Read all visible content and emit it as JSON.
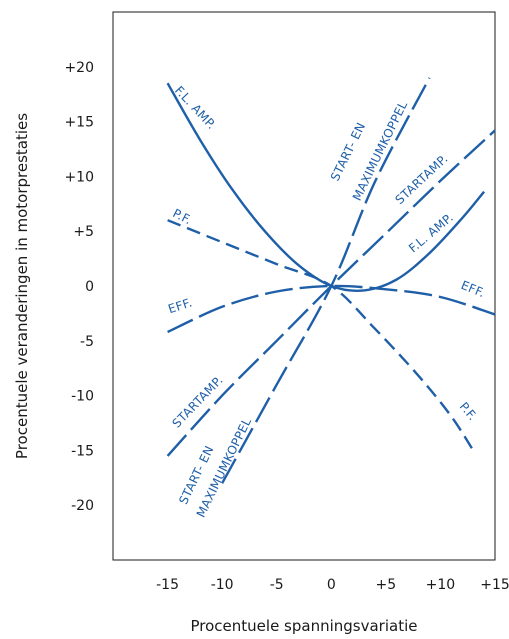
{
  "chart_data": {
    "type": "line",
    "title": "",
    "xlabel": "Procentuele spanningsvariatie",
    "ylabel": "Procentuele veranderingen in motorprestaties",
    "xlim": [
      -20,
      15
    ],
    "ylim": [
      -25,
      25
    ],
    "x_ticks": [
      -15,
      -10,
      -5,
      0,
      5,
      10,
      15
    ],
    "x_tick_labels": [
      "-15",
      "-10",
      "-5",
      "0",
      "+5",
      "+10",
      "+15"
    ],
    "y_ticks": [
      20,
      15,
      10,
      5,
      0,
      -5,
      -10,
      -15,
      -20
    ],
    "y_tick_labels": [
      "+20",
      "+15",
      "+10",
      "+5",
      "0",
      "-5",
      "-10",
      "-15",
      "-20"
    ],
    "grid": false,
    "series": [
      {
        "name": "F.L. AMP.",
        "style": "solid",
        "x": [
          -15,
          -12,
          -9,
          -6,
          -3,
          0,
          3,
          6,
          9,
          12,
          14
        ],
        "y": [
          18.5,
          13.3,
          8.7,
          4.9,
          1.9,
          0,
          -0.4,
          0.6,
          3.0,
          6.2,
          8.6
        ]
      },
      {
        "name": "START- EN MAXIMUMKOPPEL",
        "style": "long-dash",
        "x": [
          -10,
          -5,
          0,
          4,
          9
        ],
        "y": [
          -18,
          -9,
          0,
          9.5,
          19
        ]
      },
      {
        "name": "STARTAMP.",
        "style": "long-dash",
        "x": [
          -15,
          -10,
          -5,
          0,
          5,
          10,
          15
        ],
        "y": [
          -15.5,
          -10,
          -5,
          0,
          4.8,
          9.6,
          14.2
        ]
      },
      {
        "name": "P.F.",
        "style": "dash",
        "x": [
          -15,
          -10,
          -5,
          0,
          4,
          8,
          11,
          13
        ],
        "y": [
          6,
          4,
          2,
          0,
          -3.9,
          -8.2,
          -11.9,
          -15
        ]
      },
      {
        "name": "EFF.",
        "style": "long-dash",
        "x": [
          -15,
          -10,
          -5,
          0,
          5,
          10,
          15
        ],
        "y": [
          -4.2,
          -1.9,
          -0.5,
          0,
          -0.3,
          -1.0,
          -2.6
        ]
      }
    ],
    "annotations": [
      {
        "text": "F.L. AMP.",
        "x": -14.4,
        "y": 17.8,
        "angle": 47
      },
      {
        "text": "START- EN",
        "x": 0.6,
        "y": 9.5,
        "angle": -64
      },
      {
        "text": "MAXIMUMKOPPEL",
        "x": 2.6,
        "y": 7.7,
        "angle": -64
      },
      {
        "text": "STARTAMP.",
        "x": 6.3,
        "y": 7.4,
        "angle": -43
      },
      {
        "text": "F.L. AMP.",
        "x": 7.5,
        "y": 3.0,
        "angle": -40
      },
      {
        "text": "P.F.",
        "x": -14.6,
        "y": 6.4,
        "angle": 27
      },
      {
        "text": "EFF.",
        "x": -14.8,
        "y": -2.5,
        "angle": -18
      },
      {
        "text": "EFF.",
        "x": 11.8,
        "y": -0.2,
        "angle": 22
      },
      {
        "text": "STARTAMP.",
        "x": -14.1,
        "y": -13.0,
        "angle": -46
      },
      {
        "text": "P.F.",
        "x": 11.7,
        "y": -11.0,
        "angle": 50
      },
      {
        "text": "START- EN",
        "x": -13.3,
        "y": -20.0,
        "angle": -64
      },
      {
        "text": "MAXIMUMKOPPEL",
        "x": -11.7,
        "y": -21.2,
        "angle": -64
      }
    ]
  }
}
